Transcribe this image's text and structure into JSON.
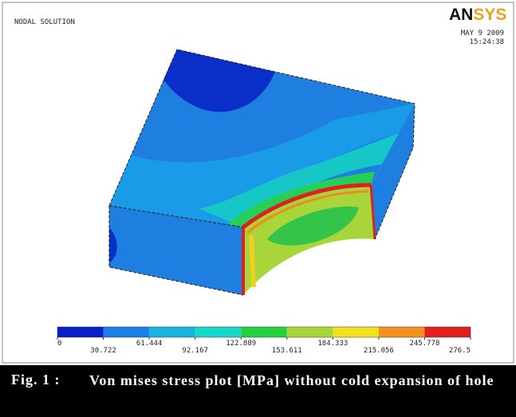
{
  "header": {
    "plot_label": "NODAL SOLUTION",
    "logo_dark": "AN",
    "logo_light": "SYS",
    "date": "MAY  9 2009",
    "time": "15:24:38"
  },
  "legend": {
    "colors": [
      "#0a1fc8",
      "#1a7fe8",
      "#17b4e0",
      "#17d8c8",
      "#26cf40",
      "#a8d63a",
      "#f2e020",
      "#f29020",
      "#e02020"
    ],
    "ticks": [
      0,
      30.722,
      61.444,
      92.167,
      122.889,
      153.611,
      184.333,
      215.056,
      245.778,
      276.5
    ]
  },
  "caption": {
    "label": "Fig. 1 :",
    "text": "Von mises stress plot [MPa] without cold expansion of hole"
  }
}
